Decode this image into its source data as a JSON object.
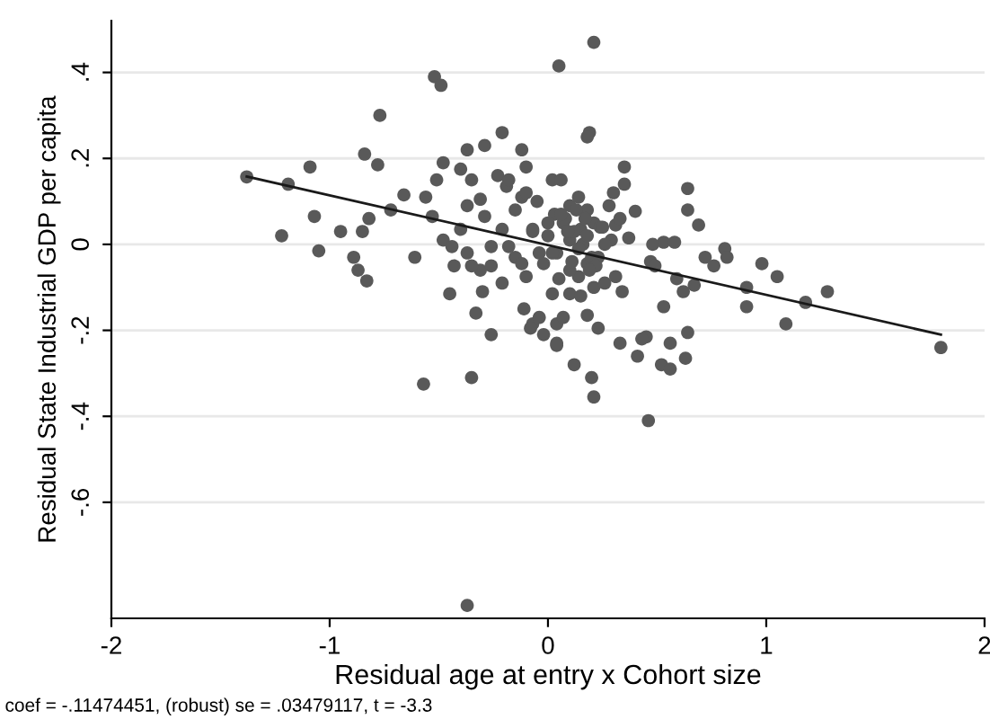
{
  "chart_data": {
    "type": "scatter",
    "xlabel": "Residual age at entry x Cohort size",
    "ylabel": "Residual State Industrial GDP per capita",
    "annotations": [
      "coef = -.11474451, (robust) se = .03479117, t = -3.3"
    ],
    "xlim": [
      -2,
      2
    ],
    "ylim": [
      -0.87,
      0.52
    ],
    "xticks": [
      -2,
      -1,
      0,
      1,
      2
    ],
    "yticks": [
      {
        "value": 0.4,
        "label": ".4"
      },
      {
        "value": 0.2,
        "label": ".2"
      },
      0,
      {
        "value": -0.2,
        "label": "-.2"
      },
      {
        "value": -0.4,
        "label": "-.4"
      },
      {
        "value": -0.6,
        "label": "-.6"
      }
    ],
    "grid": "y",
    "legend": false,
    "series": [
      {
        "marker": "circle",
        "color": "#595959",
        "x": [
          -1.38,
          -1.19,
          -1.09,
          -1.22,
          -1.07,
          -1.05,
          -0.95,
          -0.89,
          -0.87,
          -0.83,
          -0.85,
          -0.82,
          -0.84,
          -0.78,
          -0.77,
          -0.66,
          -0.72,
          -0.61,
          -0.52,
          -0.49,
          -0.21,
          -0.26,
          -0.33,
          -0.3,
          -0.45,
          -0.48,
          -0.51,
          -0.56,
          -0.53,
          -0.43,
          -0.48,
          -0.37,
          -0.29,
          -0.12,
          -0.1,
          -0.35,
          -0.19,
          -0.12,
          -0.37,
          -0.29,
          -0.21,
          -0.07,
          -0.26,
          -0.15,
          -0.31,
          -0.21,
          -0.1,
          0.02,
          -0.11,
          -0.07,
          -0.02,
          -0.37,
          -0.44,
          -0.4,
          -0.31,
          -0.23,
          -0.4,
          0.21,
          0.05,
          0.19,
          0.18,
          0.35,
          0.35,
          0.3,
          0.64,
          0.64,
          0.69,
          0.4,
          0.81,
          0.82,
          0.72,
          0.76,
          0.98,
          1.05,
          0.91,
          0.91,
          1.18,
          1.28,
          1.09,
          1.8,
          0.53,
          0.58,
          0.48,
          0.47,
          0.49,
          0.59,
          0.67,
          0.62,
          0.53,
          0.64,
          0.56,
          0.45,
          0.43,
          0.33,
          0.23,
          0.18,
          0.04,
          0.07,
          -0.04,
          -0.08,
          0.04,
          0.21,
          0.26,
          0.31,
          0.34,
          0.1,
          0.14,
          0.18,
          0.23,
          0.29,
          0.31,
          0.37,
          0.1,
          0.04,
          -0.02,
          -0.04,
          0.03,
          0.1,
          0.14,
          0.18,
          0.21,
          0.15,
          0.07,
          0.0,
          0.02,
          0.06,
          -0.18,
          -0.1,
          -0.15,
          -0.07,
          -0.18,
          -0.12,
          -0.26,
          -0.35,
          -0.57,
          -0.35,
          -0.37,
          0.12,
          0.2,
          0.21,
          0.46,
          0.41,
          0.52,
          0.56,
          0.63,
          0.04,
          0.08,
          0.12,
          0.16,
          0.2,
          0.24,
          0.06,
          0.1,
          0.14,
          0.18,
          0.22,
          0.26,
          0.02,
          0.09,
          0.13,
          0.17,
          0.25,
          0.11,
          0.15,
          0.19,
          -0.05,
          0.0,
          0.05,
          0.28,
          0.33
        ],
        "values": [
          0.157,
          0.14,
          0.18,
          0.02,
          0.065,
          -0.015,
          0.03,
          -0.03,
          -0.06,
          -0.085,
          0.03,
          0.06,
          0.21,
          0.185,
          0.3,
          0.115,
          0.08,
          -0.03,
          0.39,
          0.37,
          0.26,
          -0.21,
          -0.16,
          -0.11,
          -0.115,
          0.19,
          0.15,
          0.11,
          0.065,
          -0.05,
          0.01,
          0.22,
          0.23,
          0.22,
          0.18,
          0.15,
          0.135,
          0.11,
          0.09,
          0.065,
          0.035,
          0.035,
          -0.005,
          -0.03,
          -0.06,
          -0.09,
          -0.075,
          -0.115,
          -0.15,
          -0.185,
          -0.21,
          -0.02,
          -0.005,
          0.035,
          0.105,
          0.16,
          0.175,
          0.47,
          0.415,
          0.26,
          0.25,
          0.18,
          0.14,
          0.12,
          0.13,
          0.08,
          0.045,
          0.077,
          -0.01,
          -0.03,
          -0.03,
          -0.05,
          -0.045,
          -0.075,
          -0.1,
          -0.145,
          -0.135,
          -0.11,
          -0.185,
          -0.24,
          0.005,
          0.005,
          0.0,
          -0.04,
          -0.05,
          -0.08,
          -0.095,
          -0.11,
          -0.145,
          -0.205,
          -0.23,
          -0.215,
          -0.22,
          -0.23,
          -0.195,
          -0.165,
          -0.185,
          -0.17,
          -0.17,
          -0.195,
          -0.23,
          -0.1,
          -0.09,
          -0.075,
          -0.11,
          -0.115,
          -0.075,
          -0.045,
          -0.03,
          0.01,
          0.045,
          0.015,
          0.01,
          -0.02,
          -0.045,
          -0.02,
          0.07,
          0.09,
          0.11,
          0.08,
          0.05,
          0.035,
          0.05,
          0.05,
          0.15,
          0.15,
          0.15,
          0.12,
          0.08,
          0.03,
          -0.005,
          -0.045,
          -0.05,
          -0.05,
          -0.325,
          -0.31,
          -0.84,
          -0.28,
          -0.31,
          -0.355,
          -0.41,
          -0.26,
          -0.28,
          -0.29,
          -0.265,
          -0.235,
          0.06,
          0.03,
          0.0,
          -0.03,
          0.04,
          0.07,
          -0.06,
          -0.01,
          0.02,
          -0.05,
          0.0,
          -0.02,
          0.03,
          0.08,
          0.06,
          0.04,
          -0.04,
          -0.12,
          -0.06,
          0.1,
          0.02,
          -0.08,
          0.09,
          0.06
        ]
      },
      {
        "type": "line",
        "color": "#1a1a1a",
        "x": [
          -1.38,
          1.8
        ],
        "values": [
          0.158,
          -0.21
        ]
      }
    ]
  }
}
